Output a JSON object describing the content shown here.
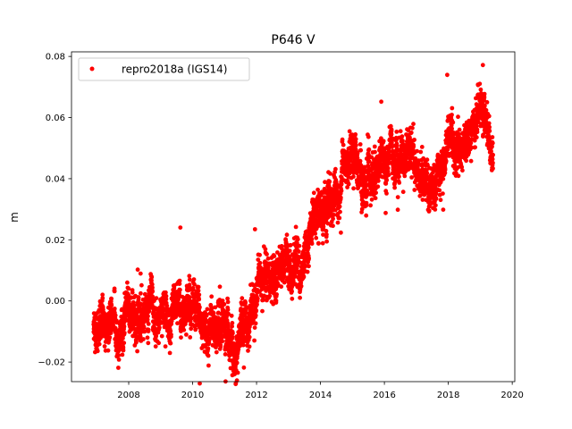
{
  "chart_data": {
    "type": "scatter",
    "title": "P646 V",
    "xlabel": "",
    "ylabel": "m",
    "xlim": [
      2006.21,
      2020.08
    ],
    "ylim": [
      -0.0264,
      0.0815
    ],
    "xticks": [
      2008,
      2010,
      2012,
      2014,
      2016,
      2018,
      2020
    ],
    "xtick_labels": [
      "2008",
      "2010",
      "2012",
      "2014",
      "2016",
      "2018",
      "2020"
    ],
    "yticks": [
      -0.02,
      0.0,
      0.02,
      0.04,
      0.06,
      0.08
    ],
    "ytick_labels": [
      "−0.02",
      "0.00",
      "0.02",
      "0.04",
      "0.06",
      "0.08"
    ],
    "grid": false,
    "legend_position": "top-left",
    "series": [
      {
        "name": "repro2018a (IGS14)",
        "color": "#ff0000",
        "marker": "circle",
        "sampling": "daily",
        "noise_sd": 0.004,
        "trend": [
          [
            2006.9,
            -0.008
          ],
          [
            2007.5,
            -0.006
          ],
          [
            2008.0,
            -0.004
          ],
          [
            2008.5,
            -0.004
          ],
          [
            2009.0,
            -0.002
          ],
          [
            2009.5,
            -0.001
          ],
          [
            2010.0,
            -0.002
          ],
          [
            2010.3,
            -0.01
          ],
          [
            2010.6,
            -0.006
          ],
          [
            2011.0,
            -0.008
          ],
          [
            2011.3,
            -0.012
          ],
          [
            2011.7,
            -0.01
          ],
          [
            2012.0,
            0.0
          ],
          [
            2012.5,
            0.006
          ],
          [
            2013.0,
            0.012
          ],
          [
            2013.3,
            0.01
          ],
          [
            2013.7,
            0.022
          ],
          [
            2014.0,
            0.03
          ],
          [
            2014.5,
            0.036
          ],
          [
            2015.0,
            0.048
          ],
          [
            2015.3,
            0.038
          ],
          [
            2015.7,
            0.042
          ],
          [
            2016.0,
            0.048
          ],
          [
            2016.3,
            0.045
          ],
          [
            2016.8,
            0.05
          ],
          [
            2017.2,
            0.04
          ],
          [
            2017.5,
            0.038
          ],
          [
            2018.0,
            0.05
          ],
          [
            2018.5,
            0.052
          ],
          [
            2019.0,
            0.058
          ],
          [
            2019.4,
            0.05
          ]
        ]
      }
    ]
  }
}
